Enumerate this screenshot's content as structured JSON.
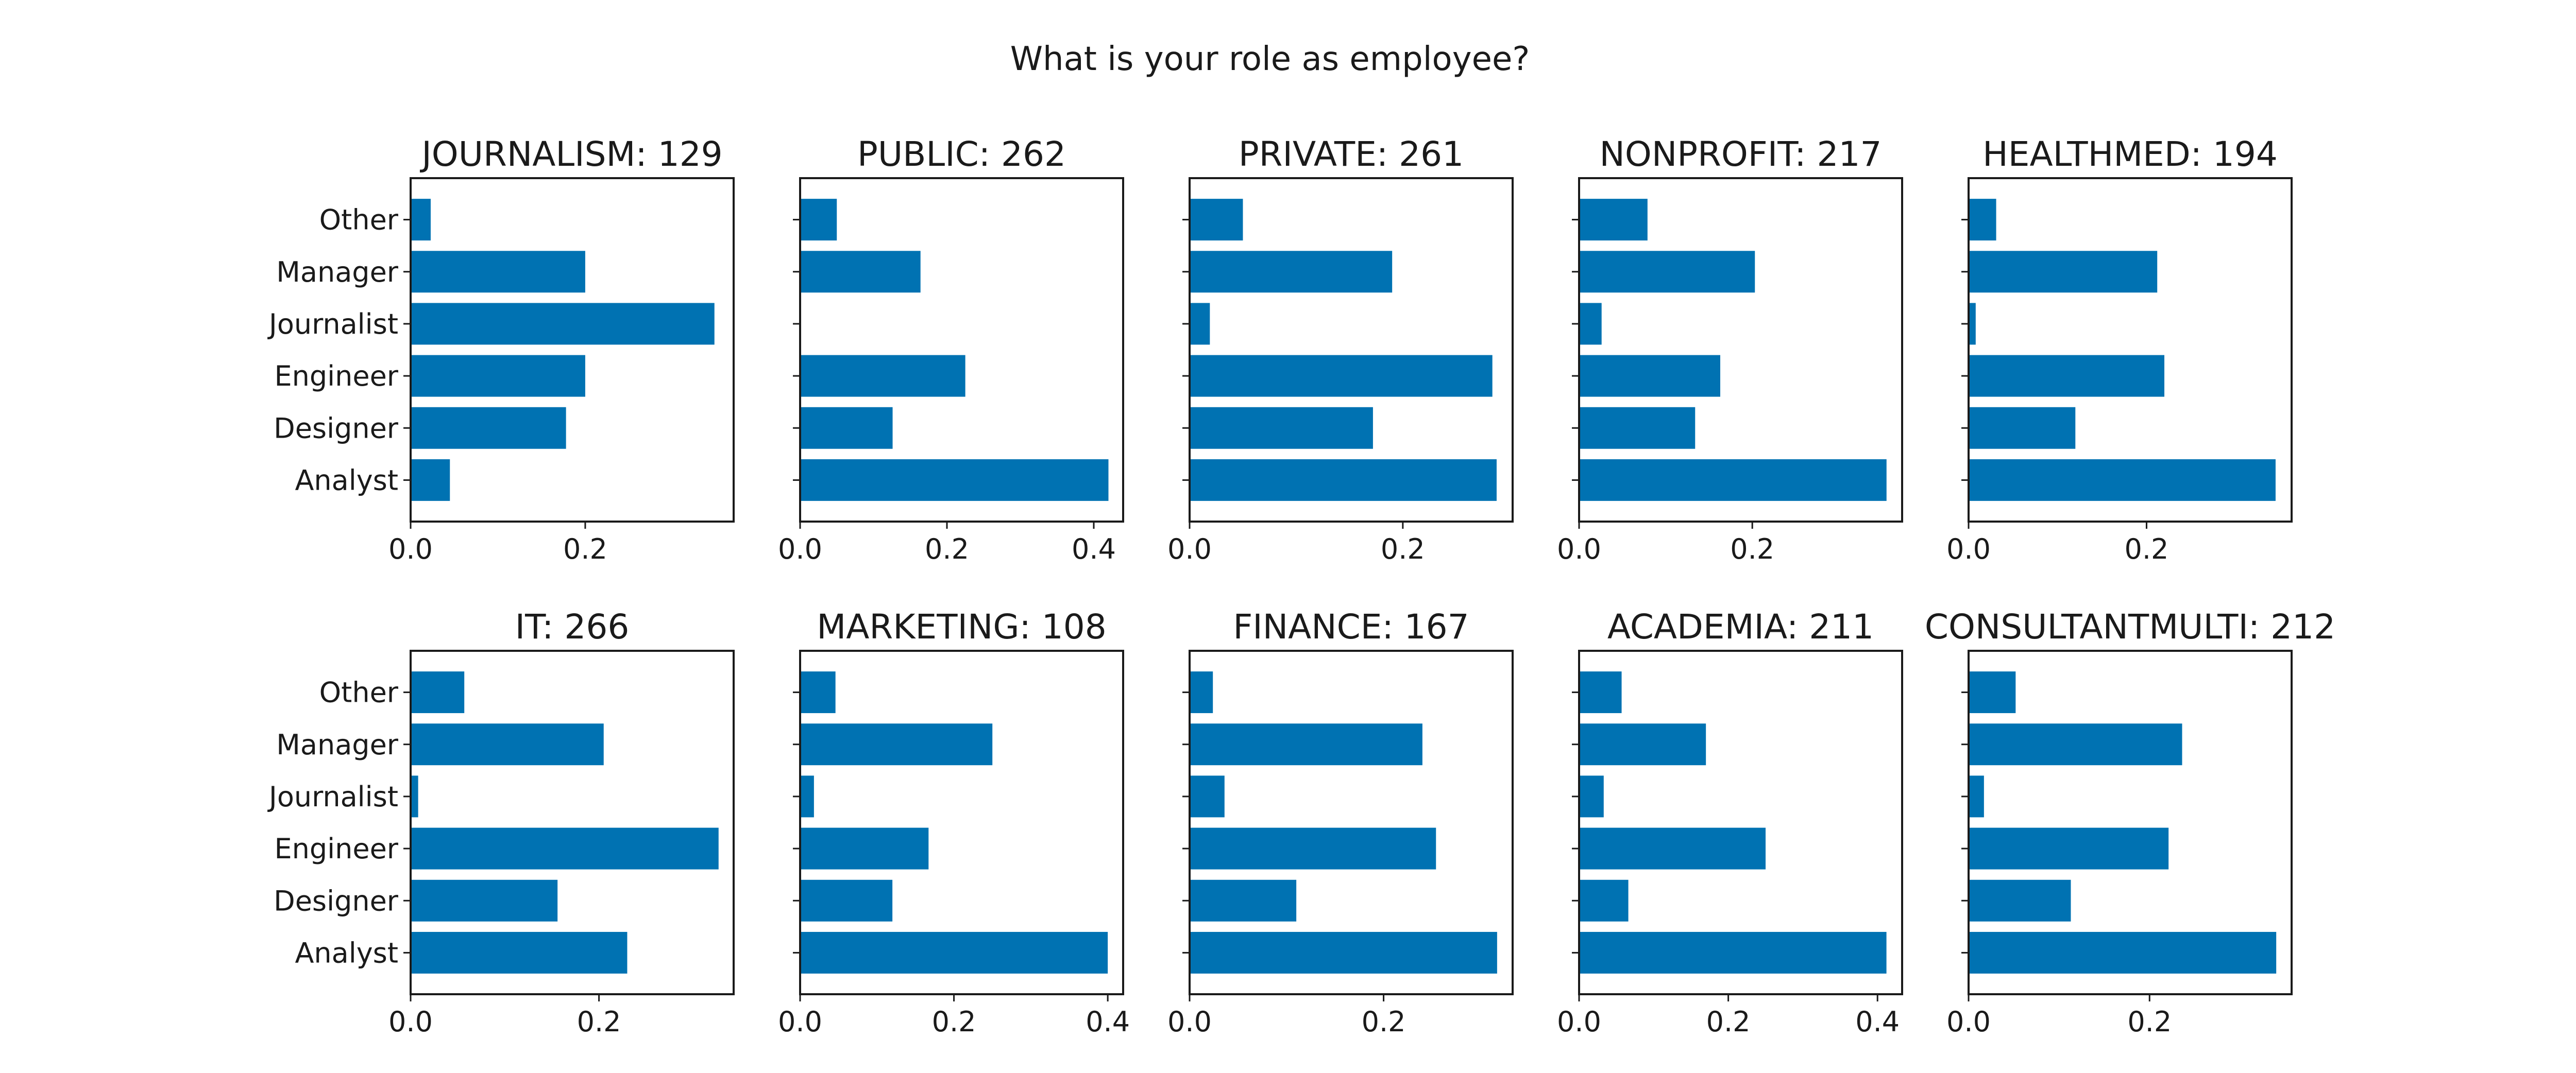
{
  "figure": {
    "title": "What is your role as employee?",
    "bar_color": "#0072b2"
  },
  "chart_data": [
    {
      "type": "bar",
      "orientation": "horizontal",
      "title": "JOURNALISM: 129",
      "categories": [
        "Analyst",
        "Designer",
        "Engineer",
        "Journalist",
        "Manager",
        "Other"
      ],
      "values": [
        0.045,
        0.178,
        0.2,
        0.348,
        0.2,
        0.023
      ],
      "xlim": [
        0,
        0.37
      ],
      "xticks": [
        0.0,
        0.2
      ],
      "xtick_labels": [
        "0.0",
        "0.2"
      ],
      "show_ytick_labels": true
    },
    {
      "type": "bar",
      "orientation": "horizontal",
      "title": "PUBLIC: 262",
      "categories": [
        "Analyst",
        "Designer",
        "Engineer",
        "Journalist",
        "Manager",
        "Other"
      ],
      "values": [
        0.42,
        0.126,
        0.225,
        0.0,
        0.164,
        0.05
      ],
      "xlim": [
        0,
        0.44
      ],
      "xticks": [
        0.0,
        0.2,
        0.4
      ],
      "xtick_labels": [
        "0.0",
        "0.2",
        "0.4"
      ],
      "show_ytick_labels": false
    },
    {
      "type": "bar",
      "orientation": "horizontal",
      "title": "PRIVATE: 261",
      "categories": [
        "Analyst",
        "Designer",
        "Engineer",
        "Journalist",
        "Manager",
        "Other"
      ],
      "values": [
        0.288,
        0.172,
        0.284,
        0.019,
        0.19,
        0.05
      ],
      "xlim": [
        0,
        0.303
      ],
      "xticks": [
        0.0,
        0.2
      ],
      "xtick_labels": [
        "0.0",
        "0.2"
      ],
      "show_ytick_labels": false
    },
    {
      "type": "bar",
      "orientation": "horizontal",
      "title": "NONPROFIT: 217",
      "categories": [
        "Analyst",
        "Designer",
        "Engineer",
        "Journalist",
        "Manager",
        "Other"
      ],
      "values": [
        0.355,
        0.134,
        0.163,
        0.026,
        0.203,
        0.079
      ],
      "xlim": [
        0,
        0.373
      ],
      "xticks": [
        0.0,
        0.2
      ],
      "xtick_labels": [
        "0.0",
        "0.2"
      ],
      "show_ytick_labels": false
    },
    {
      "type": "bar",
      "orientation": "horizontal",
      "title": "HEALTHMED: 194",
      "categories": [
        "Analyst",
        "Designer",
        "Engineer",
        "Journalist",
        "Manager",
        "Other"
      ],
      "values": [
        0.345,
        0.12,
        0.22,
        0.008,
        0.212,
        0.031
      ],
      "xlim": [
        0,
        0.363
      ],
      "xticks": [
        0.0,
        0.2
      ],
      "xtick_labels": [
        "0.0",
        "0.2"
      ],
      "show_ytick_labels": false
    },
    {
      "type": "bar",
      "orientation": "horizontal",
      "title": "IT: 266",
      "categories": [
        "Analyst",
        "Designer",
        "Engineer",
        "Journalist",
        "Manager",
        "Other"
      ],
      "values": [
        0.23,
        0.156,
        0.327,
        0.008,
        0.205,
        0.057
      ],
      "xlim": [
        0,
        0.343
      ],
      "xticks": [
        0.0,
        0.2
      ],
      "xtick_labels": [
        "0.0",
        "0.2"
      ],
      "show_ytick_labels": true
    },
    {
      "type": "bar",
      "orientation": "horizontal",
      "title": "MARKETING: 108",
      "categories": [
        "Analyst",
        "Designer",
        "Engineer",
        "Journalist",
        "Manager",
        "Other"
      ],
      "values": [
        0.4,
        0.12,
        0.167,
        0.018,
        0.25,
        0.046
      ],
      "xlim": [
        0,
        0.42
      ],
      "xticks": [
        0.0,
        0.2,
        0.4
      ],
      "xtick_labels": [
        "0.0",
        "0.2",
        "0.4"
      ],
      "show_ytick_labels": false
    },
    {
      "type": "bar",
      "orientation": "horizontal",
      "title": "FINANCE: 167",
      "categories": [
        "Analyst",
        "Designer",
        "Engineer",
        "Journalist",
        "Manager",
        "Other"
      ],
      "values": [
        0.317,
        0.11,
        0.254,
        0.036,
        0.24,
        0.024
      ],
      "xlim": [
        0,
        0.333
      ],
      "xticks": [
        0.0,
        0.2
      ],
      "xtick_labels": [
        "0.0",
        "0.2"
      ],
      "show_ytick_labels": false
    },
    {
      "type": "bar",
      "orientation": "horizontal",
      "title": "ACADEMIA: 211",
      "categories": [
        "Analyst",
        "Designer",
        "Engineer",
        "Journalist",
        "Manager",
        "Other"
      ],
      "values": [
        0.412,
        0.066,
        0.25,
        0.033,
        0.17,
        0.057
      ],
      "xlim": [
        0,
        0.433
      ],
      "xticks": [
        0.0,
        0.2,
        0.4
      ],
      "xtick_labels": [
        "0.0",
        "0.2",
        "0.4"
      ],
      "show_ytick_labels": false
    },
    {
      "type": "bar",
      "orientation": "horizontal",
      "title": "CONSULTANTMULTI: 212",
      "categories": [
        "Analyst",
        "Designer",
        "Engineer",
        "Journalist",
        "Manager",
        "Other"
      ],
      "values": [
        0.34,
        0.113,
        0.221,
        0.017,
        0.236,
        0.052
      ],
      "xlim": [
        0,
        0.357
      ],
      "xticks": [
        0.0,
        0.2
      ],
      "xtick_labels": [
        "0.0",
        "0.2"
      ],
      "show_ytick_labels": false
    }
  ]
}
